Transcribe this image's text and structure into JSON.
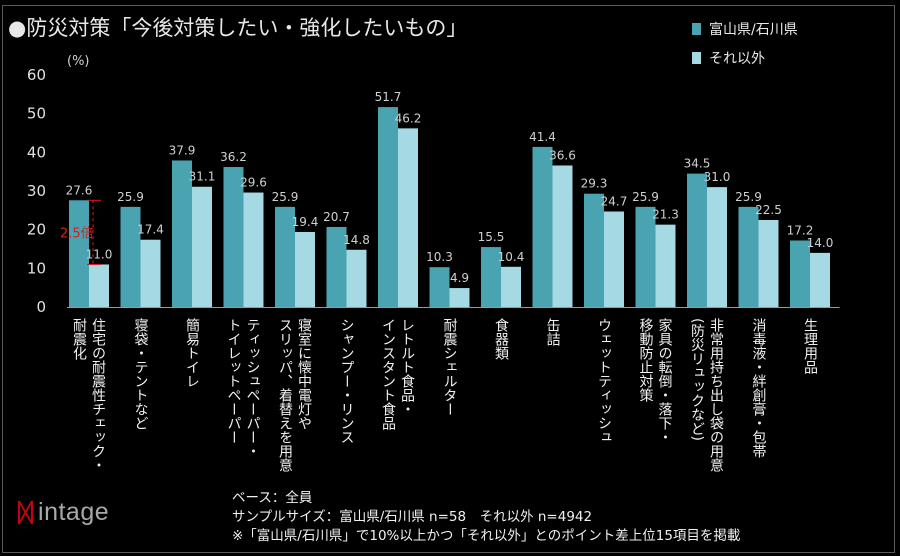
{
  "title": "●防災対策「今後対策したい・強化したいもの」",
  "unit_label": "(%)",
  "colors": {
    "series1": "#4aa3b0",
    "series2": "#a5d9e4",
    "axis": "#9a9a9a",
    "annotation": "#d81e1e"
  },
  "chart_data": {
    "type": "bar",
    "title": "●防災対策「今後対策したい・強化したいもの」",
    "ylabel": "(%)",
    "ylim": [
      0,
      60
    ],
    "yticks": [
      0,
      10,
      20,
      30,
      40,
      50,
      60
    ],
    "grid": false,
    "legend_position": "top-right",
    "categories": [
      "住宅の耐震性チェック・耐震化",
      "寝袋・テントなど",
      "簡易トイレ",
      "ティッシュペーパー・トイレットペーパー",
      "寝室に懐中電灯やスリッパ、着替えを用意",
      "シャンプー・リンス",
      "レトルト食品・インスタント食品",
      "耐震シェルター",
      "食器類",
      "缶詰",
      "ウェットティッシュ",
      "家具の転倒・落下・移動防止対策",
      "非常用持ち出し袋の用意(防災リュックなど)",
      "消毒液・絆創膏・包帯",
      "生理用品"
    ],
    "category_label_lines": [
      [
        "住宅の耐震性チェック・",
        "耐震化"
      ],
      [
        "寝袋・テントなど"
      ],
      [
        "簡易トイレ"
      ],
      [
        "ティッシュペーパー・",
        "トイレットペーパー"
      ],
      [
        "寝室に懐中電灯や",
        "スリッパ、着替えを用意"
      ],
      [
        "シャンプー・リンス"
      ],
      [
        "レトルト食品・",
        "インスタント食品"
      ],
      [
        "耐震シェルター"
      ],
      [
        "食器類"
      ],
      [
        "缶詰"
      ],
      [
        "ウェットティッシュ"
      ],
      [
        "家具の転倒・落下・",
        "移動防止対策"
      ],
      [
        "非常用持ち出し袋の用意",
        "(防災リュックなど)"
      ],
      [
        "消毒液・絆創膏・包帯"
      ],
      [
        "生理用品"
      ]
    ],
    "series": [
      {
        "name": "富山県/石川県",
        "values": [
          27.6,
          25.9,
          37.9,
          36.2,
          25.9,
          20.7,
          51.7,
          10.3,
          15.5,
          41.4,
          29.3,
          25.9,
          34.5,
          25.9,
          17.2
        ]
      },
      {
        "name": "それ以外",
        "values": [
          11.0,
          17.4,
          31.1,
          29.6,
          19.4,
          14.8,
          46.2,
          4.9,
          10.4,
          36.6,
          24.7,
          21.3,
          31.0,
          22.5,
          14.0
        ]
      }
    ],
    "annotations": [
      {
        "text": "2.5倍",
        "category_index": 0
      }
    ]
  },
  "notes": [
    "ベース：全員",
    "サンプルサイズ：富山県/石川県 n=58　それ以外 n=4942",
    "※「富山県/石川県」で10%以上かつ「それ以外」とのポイント差上位15項目を掲載"
  ],
  "logo": {
    "mark": "ᛞ",
    "word": "intage"
  }
}
